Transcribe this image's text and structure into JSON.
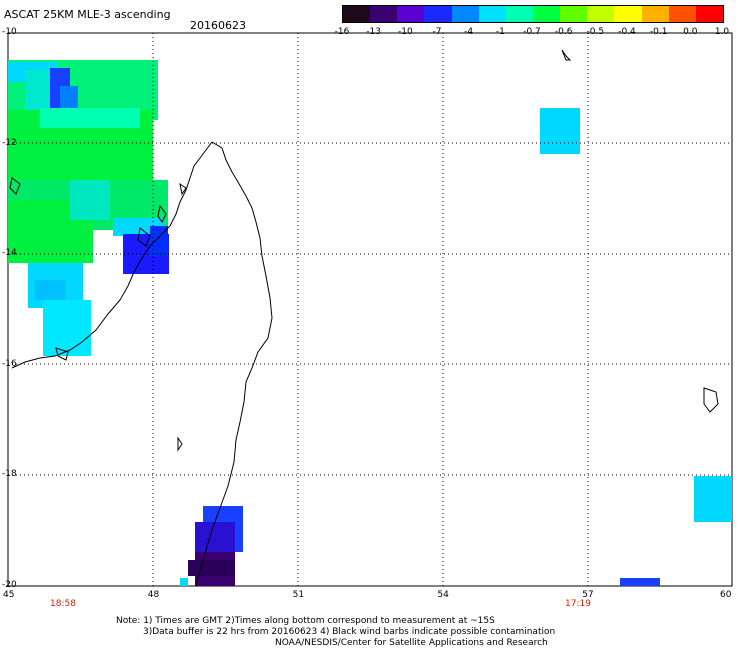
{
  "header": {
    "title": "ASCAT 25KM MLE-3 ascending",
    "date": "20160623"
  },
  "colorbar": {
    "tick_labels": [
      "-16",
      "-13",
      "-10",
      "-7",
      "-4",
      "-1",
      "-0.7",
      "-0.6",
      "-0.5",
      "-0.4",
      "-0.1",
      "0.0",
      "1.0"
    ],
    "colors": [
      "#1a0a1a",
      "#3b0070",
      "#5a00d0",
      "#1a2aff",
      "#0088ff",
      "#00e0ff",
      "#00ffb0",
      "#00ff40",
      "#60ff00",
      "#c0ff00",
      "#ffff00",
      "#ffb000",
      "#ff5000",
      "#ff0000"
    ]
  },
  "axes": {
    "lon_labels": [
      "45",
      "48",
      "51",
      "54",
      "57",
      "60"
    ],
    "lat_labels": [
      "-10",
      "-12",
      "-14",
      "-16",
      "-18",
      "-20"
    ],
    "lon_range": [
      45,
      60
    ],
    "lat_range": [
      -10,
      -20
    ]
  },
  "pass_times": {
    "left": "18:58",
    "right": "17:19"
  },
  "notes": {
    "line1": "Note: 1) Times are GMT 2)Times along bottom correspond to measurement at ~15S",
    "line2": "3)Data buffer is 22 hrs from 20160623 4) Black wind barbs indicate possible contamination",
    "line3": "NOAA/NESDIS/Center for Satellite Applications and Research"
  }
}
